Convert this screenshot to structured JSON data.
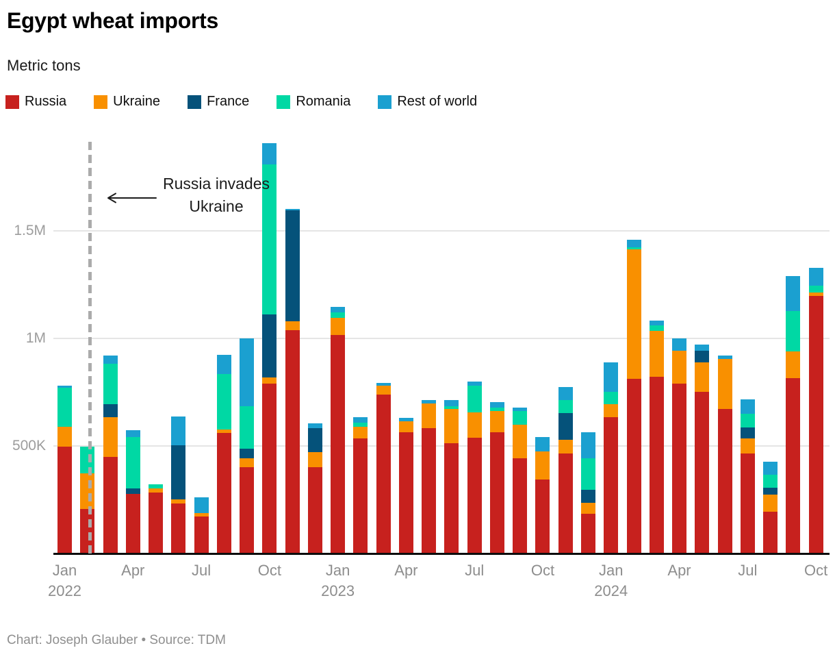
{
  "header": {
    "title": "Egypt wheat imports",
    "subtitle": "Metric tons"
  },
  "legend": {
    "items": [
      {
        "label": "Russia",
        "color": "#c7211e"
      },
      {
        "label": "Ukraine",
        "color": "#f99000"
      },
      {
        "label": "France",
        "color": "#05527a"
      },
      {
        "label": "Romania",
        "color": "#00d8a4"
      },
      {
        "label": "Rest of world",
        "color": "#1ba0d0"
      }
    ]
  },
  "annotation": {
    "lines": [
      "Russia invades",
      "Ukraine"
    ],
    "arrow_direction": "left"
  },
  "footer": {
    "credit": "Chart: Joseph Glauber • Source: TDM"
  },
  "chart_data": {
    "type": "bar",
    "stacked": true,
    "title": "Egypt wheat imports",
    "ylabel": "Metric tons",
    "unit": "metric tons",
    "grid": true,
    "legend_position": "top",
    "ylim": [
      0,
      1950000
    ],
    "y_ticks": [
      {
        "value": 500000,
        "label": "500K"
      },
      {
        "value": 1000000,
        "label": "1M"
      },
      {
        "value": 1500000,
        "label": "1.5M"
      }
    ],
    "categories": [
      "Jan 2022",
      "Feb 2022",
      "Mar 2022",
      "Apr 2022",
      "May 2022",
      "Jun 2022",
      "Jul 2022",
      "Aug 2022",
      "Sep 2022",
      "Oct 2022",
      "Nov 2022",
      "Dec 2022",
      "Jan 2023",
      "Feb 2023",
      "Mar 2023",
      "Apr 2023",
      "May 2023",
      "Jun 2023",
      "Jul 2023",
      "Aug 2023",
      "Sep 2023",
      "Oct 2023",
      "Nov 2023",
      "Dec 2023",
      "Jan 2024",
      "Feb 2024",
      "Mar 2024",
      "Apr 2024",
      "May 2024",
      "Jun 2024",
      "Jul 2024",
      "Aug 2024",
      "Sep 2024",
      "Oct 2024"
    ],
    "x_ticks": [
      {
        "index": 0,
        "month": "Jan",
        "year": "2022"
      },
      {
        "index": 3,
        "month": "Apr"
      },
      {
        "index": 6,
        "month": "Jul"
      },
      {
        "index": 9,
        "month": "Oct"
      },
      {
        "index": 12,
        "month": "Jan",
        "year": "2023"
      },
      {
        "index": 15,
        "month": "Apr"
      },
      {
        "index": 18,
        "month": "Jul"
      },
      {
        "index": 21,
        "month": "Oct"
      },
      {
        "index": 24,
        "month": "Jan",
        "year": "2024"
      },
      {
        "index": 27,
        "month": "Apr"
      },
      {
        "index": 30,
        "month": "Jul"
      },
      {
        "index": 33,
        "month": "Oct"
      }
    ],
    "series": [
      {
        "name": "Russia",
        "color": "#c7211e",
        "values": [
          495000,
          205000,
          448000,
          276000,
          281000,
          232000,
          172000,
          559000,
          400000,
          790000,
          1037000,
          401000,
          1016000,
          535000,
          739000,
          561000,
          582000,
          511000,
          536000,
          564000,
          442000,
          343000,
          465000,
          183000,
          632000,
          811000,
          822000,
          790000,
          752000,
          670000,
          463000,
          194000,
          814000,
          1197000
        ]
      },
      {
        "name": "Ukraine",
        "color": "#f99000",
        "values": [
          92000,
          165000,
          183000,
          0,
          21000,
          17000,
          13000,
          15000,
          40000,
          27000,
          43000,
          70000,
          78000,
          53000,
          39000,
          51000,
          115000,
          160000,
          118000,
          96000,
          154000,
          131000,
          62000,
          51000,
          60000,
          601000,
          211000,
          152000,
          136000,
          232000,
          72000,
          78000,
          126000,
          14000
        ]
      },
      {
        "name": "France",
        "color": "#05527a",
        "values": [
          0,
          0,
          62000,
          26000,
          0,
          253000,
          0,
          0,
          45000,
          295000,
          515000,
          111000,
          0,
          0,
          0,
          0,
          0,
          0,
          0,
          0,
          0,
          0,
          125000,
          62000,
          0,
          0,
          0,
          0,
          53000,
          0,
          51000,
          32000,
          0,
          0
        ]
      },
      {
        "name": "Romania",
        "color": "#00d8a4",
        "values": [
          182000,
          126000,
          188000,
          238000,
          17000,
          0,
          0,
          259000,
          198000,
          697000,
          0,
          0,
          26000,
          18000,
          0,
          0,
          0,
          13000,
          125000,
          18000,
          64000,
          0,
          60000,
          146000,
          58000,
          11000,
          26000,
          0,
          0,
          0,
          64000,
          61000,
          185000,
          34000
        ]
      },
      {
        "name": "Rest of world",
        "color": "#1ba0d0",
        "values": [
          9000,
          0,
          37000,
          32000,
          0,
          133000,
          74000,
          89000,
          317000,
          98000,
          6000,
          21000,
          25000,
          25000,
          14000,
          16000,
          14000,
          28000,
          19000,
          25000,
          16000,
          66000,
          61000,
          120000,
          139000,
          34000,
          23000,
          56000,
          29000,
          18000,
          66000,
          60000,
          164000,
          83000
        ]
      }
    ],
    "event_line": {
      "category": "Feb 2022",
      "label": "Russia invades Ukraine"
    }
  }
}
